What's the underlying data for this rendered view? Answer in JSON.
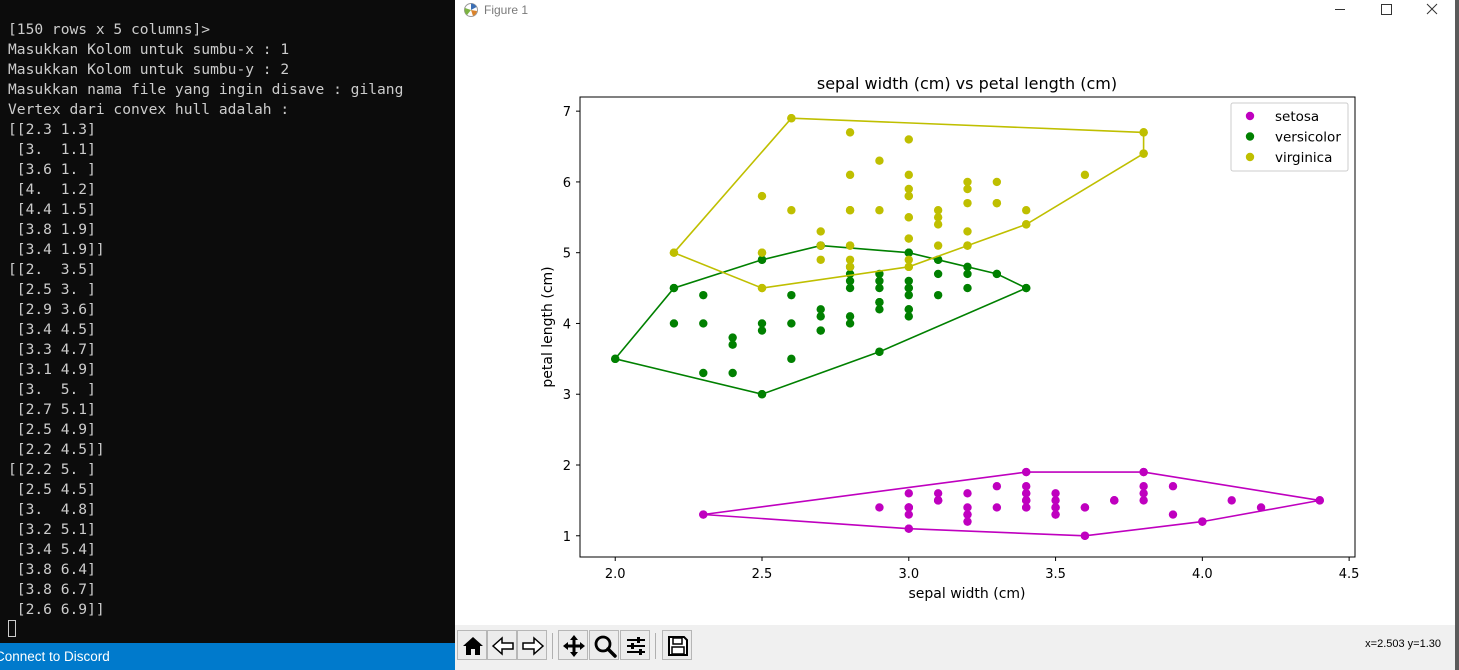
{
  "terminal": {
    "lines": [
      "[150 rows x 5 columns]>",
      "Masukkan Kolom untuk sumbu-x : 1",
      "Masukkan Kolom untuk sumbu-y : 2",
      "Masukkan nama file yang ingin disave : gilang",
      "Vertex dari convex hull adalah :",
      "[[2.3 1.3]",
      " [3.  1.1]",
      " [3.6 1. ]",
      " [4.  1.2]",
      " [4.4 1.5]",
      " [3.8 1.9]",
      " [3.4 1.9]]",
      "[[2.  3.5]",
      " [2.5 3. ]",
      " [2.9 3.6]",
      " [3.4 4.5]",
      " [3.3 4.7]",
      " [3.1 4.9]",
      " [3.  5. ]",
      " [2.7 5.1]",
      " [2.5 4.9]",
      " [2.2 4.5]]",
      "[[2.2 5. ]",
      " [2.5 4.5]",
      " [3.  4.8]",
      " [3.2 5.1]",
      " [3.4 5.4]",
      " [3.8 6.4]",
      " [3.8 6.7]",
      " [2.6 6.9]]"
    ],
    "status_text": "Connect to Discord"
  },
  "window": {
    "title": "Figure 1",
    "buttons": {
      "minimize": "minimize-icon",
      "maximize": "maximize-icon",
      "close": "close-icon"
    }
  },
  "toolbar": {
    "tools": [
      "home-icon",
      "back-icon",
      "forward-icon",
      "pan-icon",
      "zoom-icon",
      "configure-subplots-icon",
      "save-icon"
    ],
    "coords": "x=2.503 y=1.30"
  },
  "chart_data": {
    "type": "scatter",
    "title": "sepal width (cm) vs petal length (cm)",
    "xlabel": "sepal width (cm)",
    "ylabel": "petal length (cm)",
    "xlim": [
      1.88,
      4.52
    ],
    "ylim": [
      0.7,
      7.2
    ],
    "xticks": [
      2.0,
      2.5,
      3.0,
      3.5,
      4.0,
      4.5
    ],
    "xtick_labels": [
      "2.0",
      "2.5",
      "3.0",
      "3.5",
      "4.0",
      "4.5"
    ],
    "yticks": [
      1,
      2,
      3,
      4,
      5,
      6,
      7
    ],
    "ytick_labels": [
      "1",
      "2",
      "3",
      "4",
      "5",
      "6",
      "7"
    ],
    "grid": false,
    "legend_position": "top-right",
    "series": [
      {
        "name": "setosa",
        "color": "#bf00bf",
        "points": [
          [
            3.5,
            1.4
          ],
          [
            3.0,
            1.4
          ],
          [
            3.2,
            1.3
          ],
          [
            3.1,
            1.5
          ],
          [
            3.6,
            1.4
          ],
          [
            3.9,
            1.7
          ],
          [
            3.4,
            1.4
          ],
          [
            3.4,
            1.5
          ],
          [
            2.9,
            1.4
          ],
          [
            3.1,
            1.5
          ],
          [
            3.7,
            1.5
          ],
          [
            3.4,
            1.6
          ],
          [
            3.0,
            1.4
          ],
          [
            3.0,
            1.1
          ],
          [
            4.0,
            1.2
          ],
          [
            4.4,
            1.5
          ],
          [
            3.9,
            1.3
          ],
          [
            3.5,
            1.4
          ],
          [
            3.8,
            1.7
          ],
          [
            3.8,
            1.5
          ],
          [
            3.4,
            1.7
          ],
          [
            3.7,
            1.5
          ],
          [
            3.6,
            1.0
          ],
          [
            3.3,
            1.7
          ],
          [
            3.4,
            1.9
          ],
          [
            3.0,
            1.6
          ],
          [
            3.4,
            1.6
          ],
          [
            3.5,
            1.5
          ],
          [
            3.4,
            1.4
          ],
          [
            3.2,
            1.6
          ],
          [
            3.1,
            1.6
          ],
          [
            3.4,
            1.5
          ],
          [
            4.1,
            1.5
          ],
          [
            4.2,
            1.4
          ],
          [
            3.1,
            1.5
          ],
          [
            3.2,
            1.2
          ],
          [
            3.5,
            1.3
          ],
          [
            3.6,
            1.4
          ],
          [
            3.0,
            1.3
          ],
          [
            3.4,
            1.5
          ],
          [
            3.5,
            1.3
          ],
          [
            2.3,
            1.3
          ],
          [
            3.2,
            1.3
          ],
          [
            3.5,
            1.6
          ],
          [
            3.8,
            1.9
          ],
          [
            3.0,
            1.4
          ],
          [
            3.8,
            1.6
          ],
          [
            3.2,
            1.4
          ],
          [
            3.7,
            1.5
          ],
          [
            3.3,
            1.4
          ]
        ],
        "hull": [
          [
            2.3,
            1.3
          ],
          [
            3.0,
            1.1
          ],
          [
            3.6,
            1.0
          ],
          [
            4.0,
            1.2
          ],
          [
            4.4,
            1.5
          ],
          [
            3.8,
            1.9
          ],
          [
            3.4,
            1.9
          ]
        ]
      },
      {
        "name": "versicolor",
        "color": "#008000",
        "points": [
          [
            3.2,
            4.7
          ],
          [
            3.2,
            4.5
          ],
          [
            3.1,
            4.9
          ],
          [
            2.3,
            4.0
          ],
          [
            2.8,
            4.6
          ],
          [
            2.8,
            4.5
          ],
          [
            3.3,
            4.7
          ],
          [
            2.4,
            3.3
          ],
          [
            2.9,
            4.6
          ],
          [
            2.7,
            3.9
          ],
          [
            2.0,
            3.5
          ],
          [
            3.0,
            4.2
          ],
          [
            2.2,
            4.0
          ],
          [
            2.9,
            4.7
          ],
          [
            2.9,
            3.6
          ],
          [
            3.1,
            4.4
          ],
          [
            3.0,
            4.5
          ],
          [
            2.7,
            4.1
          ],
          [
            2.2,
            4.5
          ],
          [
            2.5,
            3.9
          ],
          [
            3.2,
            4.8
          ],
          [
            2.8,
            4.0
          ],
          [
            2.5,
            4.9
          ],
          [
            2.8,
            4.7
          ],
          [
            2.9,
            4.3
          ],
          [
            3.0,
            4.4
          ],
          [
            2.8,
            4.8
          ],
          [
            3.0,
            5.0
          ],
          [
            2.9,
            4.5
          ],
          [
            2.6,
            3.5
          ],
          [
            2.4,
            3.8
          ],
          [
            2.4,
            3.7
          ],
          [
            2.7,
            3.9
          ],
          [
            2.7,
            5.1
          ],
          [
            3.0,
            4.5
          ],
          [
            3.4,
            4.5
          ],
          [
            3.1,
            4.7
          ],
          [
            2.3,
            4.4
          ],
          [
            3.0,
            4.1
          ],
          [
            2.5,
            4.0
          ],
          [
            2.6,
            4.4
          ],
          [
            3.0,
            4.6
          ],
          [
            2.6,
            4.0
          ],
          [
            2.3,
            3.3
          ],
          [
            2.7,
            4.2
          ],
          [
            3.0,
            4.2
          ],
          [
            2.9,
            4.2
          ],
          [
            2.9,
            4.3
          ],
          [
            2.5,
            3.0
          ],
          [
            2.8,
            4.1
          ]
        ],
        "hull": [
          [
            2.0,
            3.5
          ],
          [
            2.5,
            3.0
          ],
          [
            2.9,
            3.6
          ],
          [
            3.4,
            4.5
          ],
          [
            3.3,
            4.7
          ],
          [
            3.1,
            4.9
          ],
          [
            3.0,
            5.0
          ],
          [
            2.7,
            5.1
          ],
          [
            2.5,
            4.9
          ],
          [
            2.2,
            4.5
          ]
        ]
      },
      {
        "name": "virginica",
        "color": "#bfbf00",
        "points": [
          [
            3.3,
            6.0
          ],
          [
            2.7,
            5.1
          ],
          [
            3.0,
            5.9
          ],
          [
            2.9,
            5.6
          ],
          [
            3.0,
            5.8
          ],
          [
            3.0,
            6.6
          ],
          [
            2.5,
            4.5
          ],
          [
            2.9,
            6.3
          ],
          [
            2.5,
            5.8
          ],
          [
            3.6,
            6.1
          ],
          [
            3.2,
            5.1
          ],
          [
            2.7,
            5.3
          ],
          [
            3.0,
            5.5
          ],
          [
            2.5,
            5.0
          ],
          [
            2.8,
            5.1
          ],
          [
            3.2,
            5.3
          ],
          [
            3.0,
            5.5
          ],
          [
            3.8,
            6.7
          ],
          [
            2.6,
            6.9
          ],
          [
            2.2,
            5.0
          ],
          [
            3.2,
            5.7
          ],
          [
            2.8,
            4.9
          ],
          [
            2.8,
            6.7
          ],
          [
            2.7,
            4.9
          ],
          [
            3.3,
            5.7
          ],
          [
            3.2,
            6.0
          ],
          [
            2.8,
            4.8
          ],
          [
            3.0,
            4.9
          ],
          [
            2.8,
            5.6
          ],
          [
            3.0,
            5.8
          ],
          [
            2.8,
            6.1
          ],
          [
            3.8,
            6.4
          ],
          [
            2.8,
            5.6
          ],
          [
            2.8,
            5.1
          ],
          [
            2.6,
            5.6
          ],
          [
            3.0,
            6.1
          ],
          [
            3.4,
            5.6
          ],
          [
            3.1,
            5.5
          ],
          [
            3.0,
            4.8
          ],
          [
            3.1,
            5.4
          ],
          [
            3.1,
            5.6
          ],
          [
            3.1,
            5.1
          ],
          [
            3.2,
            5.9
          ],
          [
            3.3,
            5.7
          ],
          [
            3.0,
            5.2
          ],
          [
            2.5,
            5.0
          ],
          [
            3.0,
            5.2
          ],
          [
            3.4,
            5.4
          ]
        ],
        "hull": [
          [
            2.2,
            5.0
          ],
          [
            2.5,
            4.5
          ],
          [
            3.0,
            4.8
          ],
          [
            3.2,
            5.1
          ],
          [
            3.4,
            5.4
          ],
          [
            3.8,
            6.4
          ],
          [
            3.8,
            6.7
          ],
          [
            2.6,
            6.9
          ]
        ]
      }
    ]
  }
}
